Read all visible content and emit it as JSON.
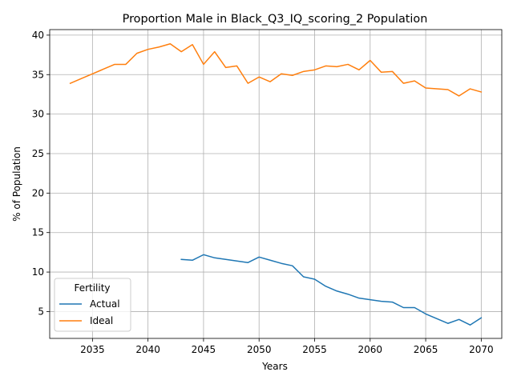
{
  "chart_data": {
    "type": "line",
    "title": "Proportion Male in Black_Q3_IQ_scoring_2 Population",
    "xlabel": "Years",
    "ylabel": "% of Population",
    "xlim": [
      2031.15,
      2071.85
    ],
    "ylim": [
      1.6,
      40.7
    ],
    "xticks": [
      2035,
      2040,
      2045,
      2050,
      2055,
      2060,
      2065,
      2070
    ],
    "yticks": [
      5,
      10,
      15,
      20,
      25,
      30,
      35,
      40
    ],
    "grid": true,
    "legend": {
      "title": "Fertility",
      "placement": "lower-left"
    },
    "series": [
      {
        "name": "Actual",
        "color": "#1f77b4",
        "x": [
          2043,
          2044,
          2045,
          2046,
          2047,
          2048,
          2049,
          2050,
          2051,
          2052,
          2053,
          2054,
          2055,
          2056,
          2057,
          2058,
          2059,
          2060,
          2061,
          2062,
          2063,
          2064,
          2065,
          2066,
          2067,
          2068,
          2069,
          2070
        ],
        "values": [
          11.6,
          11.5,
          12.2,
          11.8,
          11.6,
          11.4,
          11.2,
          11.9,
          11.5,
          11.1,
          10.8,
          9.4,
          9.1,
          8.2,
          7.6,
          7.2,
          6.7,
          6.5,
          6.3,
          6.2,
          5.5,
          5.5,
          4.7,
          4.1,
          3.5,
          4.0,
          3.3,
          4.2
        ]
      },
      {
        "name": "Ideal",
        "color": "#ff7f0e",
        "x": [
          2033,
          2034,
          2035,
          2036,
          2037,
          2038,
          2039,
          2040,
          2041,
          2042,
          2043,
          2044,
          2045,
          2046,
          2047,
          2048,
          2049,
          2050,
          2051,
          2052,
          2053,
          2054,
          2055,
          2056,
          2057,
          2058,
          2059,
          2060,
          2061,
          2062,
          2063,
          2064,
          2065,
          2066,
          2067,
          2068,
          2069,
          2070
        ],
        "values": [
          33.9,
          34.5,
          35.1,
          35.7,
          36.3,
          36.3,
          37.7,
          38.2,
          38.5,
          38.9,
          37.9,
          38.8,
          36.3,
          37.9,
          35.9,
          36.1,
          33.9,
          34.7,
          34.1,
          35.1,
          34.9,
          35.4,
          35.6,
          36.1,
          36.0,
          36.3,
          35.6,
          36.8,
          35.3,
          35.4,
          33.9,
          34.2,
          33.3,
          33.2,
          33.1,
          32.3,
          33.2,
          32.8
        ]
      }
    ]
  }
}
